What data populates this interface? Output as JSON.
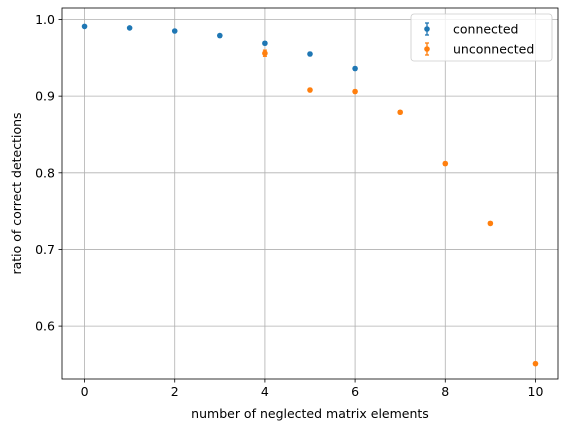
{
  "chart_data": {
    "type": "scatter",
    "xlabel": "number of neglected matrix elements",
    "ylabel": "ratio of correct detections",
    "xlim": [
      -0.5,
      10.5
    ],
    "ylim": [
      0.531,
      1.015
    ],
    "xticks": [
      0,
      2,
      4,
      6,
      8,
      10
    ],
    "yticks": [
      0.6,
      0.7,
      0.8,
      0.9,
      1.0
    ],
    "xtick_labels": [
      "0",
      "2",
      "4",
      "6",
      "8",
      "10"
    ],
    "ytick_labels": [
      "0.6",
      "0.7",
      "0.8",
      "0.9",
      "1.0"
    ],
    "grid": true,
    "legend_position": "upper right",
    "series": [
      {
        "name": "connected",
        "color": "#1f77b4",
        "error_bars": true,
        "x": [
          0,
          1,
          2,
          3,
          4,
          5,
          6
        ],
        "y": [
          0.991,
          0.989,
          0.985,
          0.979,
          0.969,
          0.955,
          0.936
        ],
        "err": [
          0.001,
          0.001,
          0.001,
          0.001,
          0.002,
          0.002,
          0.002
        ]
      },
      {
        "name": "unconnected",
        "color": "#ff7f0e",
        "error_bars": true,
        "x": [
          4,
          5,
          6,
          7,
          8,
          9,
          10
        ],
        "y": [
          0.956,
          0.908,
          0.906,
          0.879,
          0.812,
          0.734,
          0.551
        ],
        "err": [
          0.004,
          0.002,
          0.002,
          0.002,
          0.002,
          0.002,
          0.002
        ]
      }
    ]
  }
}
